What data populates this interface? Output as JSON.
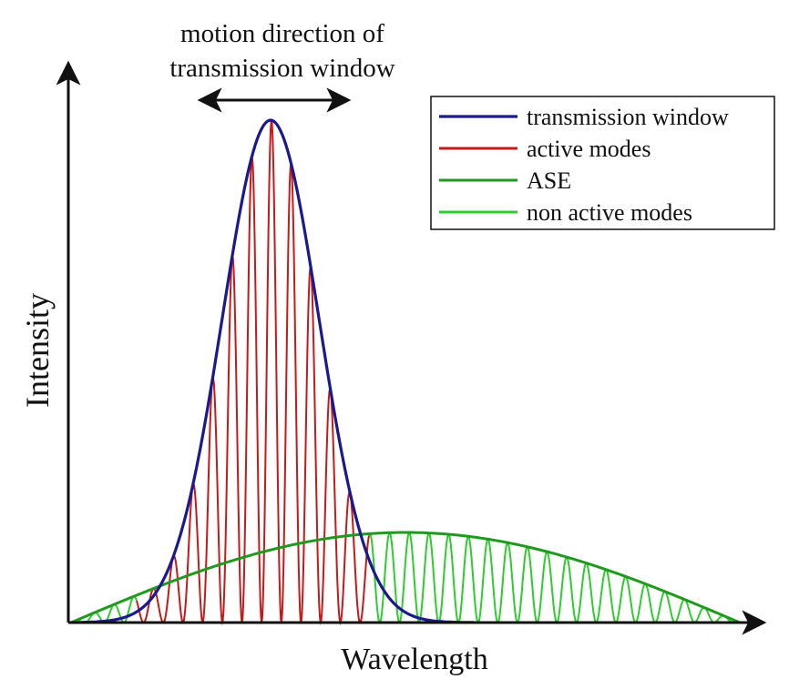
{
  "annotation": {
    "line1": "motion direction of",
    "line2": "transmission window"
  },
  "axes": {
    "xlabel": "Wavelength",
    "ylabel": "Intensity"
  },
  "legend": {
    "items": [
      {
        "label": "transmission window",
        "color": "#1a1a8c"
      },
      {
        "label": "active modes",
        "color": "#c41a1a"
      },
      {
        "label": "ASE",
        "color": "#1f9a1f"
      },
      {
        "label": "non active modes",
        "color": "#2ecc2e"
      }
    ]
  },
  "colors": {
    "axis": "#111111",
    "window": "#1a1a8c",
    "active": "#c41a1a",
    "ase": "#1f9a1f",
    "nonactive": "#2ecc2e"
  }
}
